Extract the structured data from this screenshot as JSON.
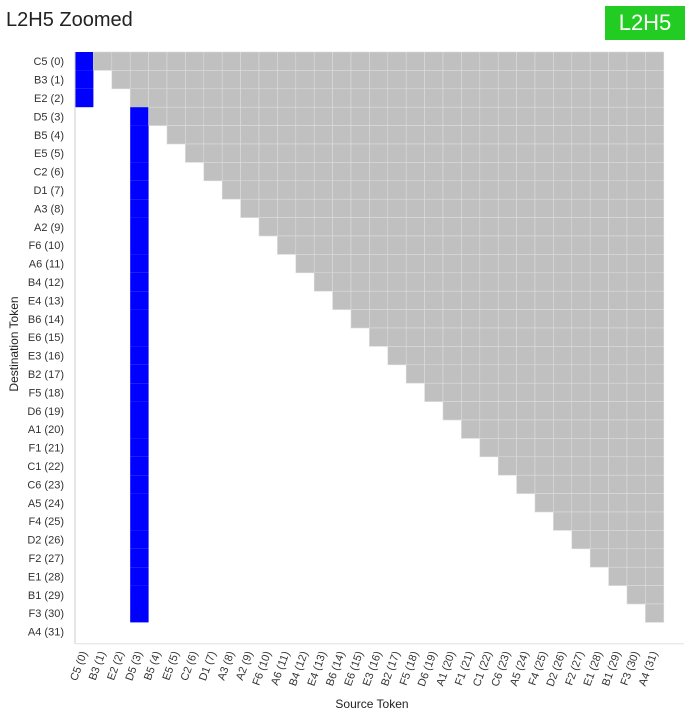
{
  "page": {
    "title": "L2H5 Zoomed",
    "badge": "L2H5"
  },
  "chart_data": {
    "type": "heatmap",
    "title": "L2H5 Zoomed",
    "xlabel": "Source Token",
    "ylabel": "Destination Token",
    "tokens": [
      "C5 (0)",
      "B3 (1)",
      "E2 (2)",
      "D5 (3)",
      "B5 (4)",
      "E5 (5)",
      "C2 (6)",
      "D1 (7)",
      "A3 (8)",
      "A2 (9)",
      "F6 (10)",
      "A6 (11)",
      "B4 (12)",
      "E4 (13)",
      "B6 (14)",
      "E6 (15)",
      "E3 (16)",
      "B2 (17)",
      "F5 (18)",
      "D6 (19)",
      "A1 (20)",
      "F1 (21)",
      "C1 (22)",
      "C6 (23)",
      "A5 (24)",
      "F4 (25)",
      "D2 (26)",
      "F2 (27)",
      "E1 (28)",
      "B1 (29)",
      "F3 (30)",
      "A4 (31)"
    ],
    "masked_region": "upper triangle (source > destination), shown grey",
    "high_attention_cells": [
      {
        "dest": 0,
        "src": 0,
        "value": 1.0
      },
      {
        "dest": 1,
        "src": 0,
        "value": 1.0
      },
      {
        "dest": 2,
        "src": 0,
        "value": 1.0
      },
      {
        "dest": 3,
        "src": 3,
        "value": 1.0
      },
      {
        "dest": 4,
        "src": 3,
        "value": 1.0
      },
      {
        "dest": 5,
        "src": 3,
        "value": 1.0
      },
      {
        "dest": 6,
        "src": 3,
        "value": 1.0
      },
      {
        "dest": 7,
        "src": 3,
        "value": 1.0
      },
      {
        "dest": 8,
        "src": 3,
        "value": 1.0
      },
      {
        "dest": 9,
        "src": 3,
        "value": 1.0
      },
      {
        "dest": 10,
        "src": 3,
        "value": 1.0
      },
      {
        "dest": 11,
        "src": 3,
        "value": 1.0
      },
      {
        "dest": 12,
        "src": 3,
        "value": 1.0
      },
      {
        "dest": 13,
        "src": 3,
        "value": 1.0
      },
      {
        "dest": 14,
        "src": 3,
        "value": 1.0
      },
      {
        "dest": 15,
        "src": 3,
        "value": 1.0
      },
      {
        "dest": 16,
        "src": 3,
        "value": 1.0
      },
      {
        "dest": 17,
        "src": 3,
        "value": 1.0
      },
      {
        "dest": 18,
        "src": 3,
        "value": 1.0
      },
      {
        "dest": 19,
        "src": 3,
        "value": 1.0
      },
      {
        "dest": 20,
        "src": 3,
        "value": 1.0
      },
      {
        "dest": 21,
        "src": 3,
        "value": 1.0
      },
      {
        "dest": 22,
        "src": 3,
        "value": 1.0
      },
      {
        "dest": 23,
        "src": 3,
        "value": 1.0
      },
      {
        "dest": 24,
        "src": 3,
        "value": 1.0
      },
      {
        "dest": 25,
        "src": 3,
        "value": 1.0
      },
      {
        "dest": 26,
        "src": 3,
        "value": 1.0
      },
      {
        "dest": 27,
        "src": 3,
        "value": 1.0
      },
      {
        "dest": 28,
        "src": 3,
        "value": 1.0
      },
      {
        "dest": 29,
        "src": 3,
        "value": 1.0
      },
      {
        "dest": 30,
        "src": 3,
        "value": 1.0
      }
    ],
    "colors": {
      "high": "#0000ff",
      "low": "#ffffff",
      "masked": "#c0c0c0",
      "grid": "#dcdcdc",
      "badge": "#22cc22"
    }
  }
}
